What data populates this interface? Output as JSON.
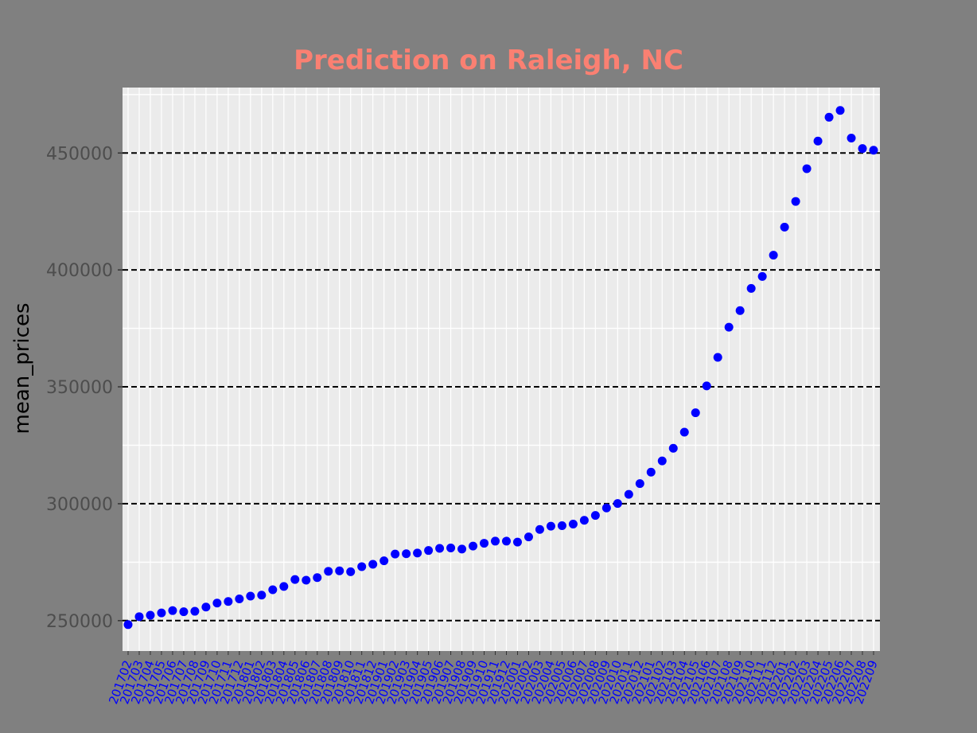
{
  "chart_data": {
    "type": "scatter",
    "title": "Prediction on Raleigh, NC",
    "xlabel": "",
    "ylabel": "mean_prices",
    "ylim": [
      237000,
      478000
    ],
    "yticks": [
      "250000",
      "300000",
      "350000",
      "400000",
      "450000"
    ],
    "grid": true,
    "colors": {
      "figure_bg": "#808080",
      "panel_bg": "#ebebeb",
      "title": "#fa8072",
      "points": "#0000ff",
      "xtick_labels": "#0000ff",
      "ytick_labels": "#4d4d4d",
      "major_hline": "#000000",
      "grid": "#ffffff"
    },
    "x": [
      "201702",
      "201703",
      "201704",
      "201705",
      "201706",
      "201707",
      "201708",
      "201709",
      "201710",
      "201711",
      "201712",
      "201801",
      "201802",
      "201803",
      "201804",
      "201805",
      "201806",
      "201807",
      "201808",
      "201809",
      "201810",
      "201811",
      "201812",
      "201901",
      "201902",
      "201903",
      "201904",
      "201905",
      "201906",
      "201907",
      "201908",
      "201909",
      "201910",
      "201911",
      "201912",
      "202001",
      "202002",
      "202003",
      "202004",
      "202005",
      "202006",
      "202007",
      "202008",
      "202009",
      "202010",
      "202011",
      "202012",
      "202101",
      "202102",
      "202103",
      "202104",
      "202105",
      "202106",
      "202107",
      "202108",
      "202109",
      "202110",
      "202111",
      "202112",
      "202201",
      "202202",
      "202203",
      "202204",
      "202205",
      "202206",
      "202207",
      "202208",
      "202209"
    ],
    "x_labels_visible": [
      "201702",
      "201703",
      "201704",
      "201705",
      "201706",
      "201707",
      "201708",
      "201709",
      "201710",
      "201711",
      "201712",
      "201801",
      "201802",
      "201803",
      "201804",
      "201805",
      "201806",
      "201807",
      "201808",
      "201809",
      "201810",
      "201811",
      "201812",
      "201901",
      "201902",
      "201903",
      "201904",
      "201905",
      "201906",
      "201907",
      "201908",
      "201909",
      "201910",
      "201911",
      "201912",
      "202001",
      "202002",
      "202003",
      "202004",
      "202005",
      "202006",
      "202007",
      "202008",
      "202009",
      "202010",
      "202011",
      "202012",
      "202101",
      "202102",
      "202103",
      "202104",
      "202105",
      "202106",
      "202107",
      "202108",
      "202109",
      "202110",
      "202111",
      "202112",
      "202201",
      "202202",
      "202203",
      "202204",
      "202205",
      "202206",
      "202207",
      "202208",
      "202209"
    ],
    "y": [
      248300,
      251700,
      252300,
      253300,
      254300,
      253800,
      254000,
      255800,
      257500,
      258200,
      259300,
      260500,
      260900,
      263200,
      264600,
      267600,
      267300,
      268400,
      271100,
      271300,
      270900,
      273100,
      274100,
      275600,
      278500,
      278600,
      278900,
      280000,
      280900,
      281100,
      280600,
      281900,
      283100,
      284000,
      284000,
      283600,
      285800,
      289000,
      290400,
      290600,
      291300,
      292900,
      295000,
      298200,
      300100,
      304000,
      308600,
      313500,
      318300,
      323700,
      330600,
      338900,
      350400,
      362600,
      375500,
      382600,
      392100,
      397200,
      406300,
      418300,
      429300,
      443300,
      455100,
      465300,
      468200,
      456400,
      451900,
      451200
    ]
  }
}
